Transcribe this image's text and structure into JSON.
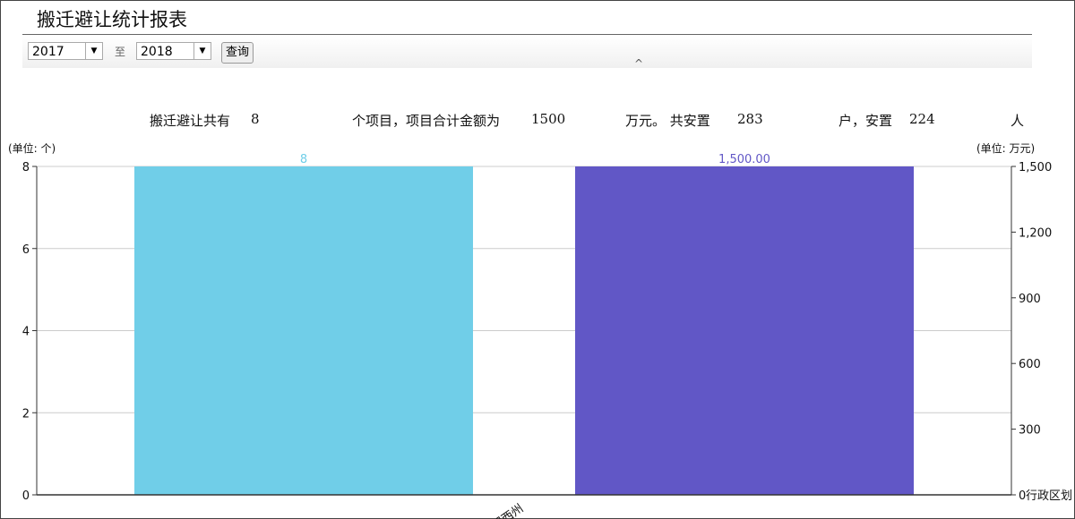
{
  "header": {
    "title": "搬迁避让统计报表"
  },
  "filters": {
    "from_year": "2017",
    "to_label": "至",
    "to_year": "2018",
    "query_button": "查询",
    "collapse_icon": "caret-up-icon"
  },
  "summary": {
    "p1": "搬迁避让共有",
    "projects": "8",
    "p2": "个项目，项目合计金额为",
    "amount": "1500",
    "p3": "万元。 共安置",
    "households": "283",
    "p4": "户，安置",
    "people": "224",
    "p5": "人"
  },
  "chart_data": {
    "type": "bar",
    "categories": [
      "湘西州"
    ],
    "xlabel": "行政区划",
    "series": [
      {
        "axis": "left",
        "values": [
          8
        ],
        "labels": [
          "8"
        ],
        "color": "#70CEE8"
      },
      {
        "axis": "right",
        "values": [
          1500
        ],
        "labels": [
          "1,500.00"
        ],
        "color": "#6157C6"
      }
    ],
    "left_axis": {
      "unit": "(单位: 个)",
      "ylim": [
        0,
        8
      ],
      "ticks": [
        "0",
        "2",
        "4",
        "6",
        "8"
      ]
    },
    "right_axis": {
      "unit": "(单位: 万元)",
      "ylim": [
        0,
        1500
      ],
      "ticks": [
        "0",
        "300",
        "600",
        "900",
        "1,200",
        "1,500"
      ]
    },
    "grid": true
  }
}
